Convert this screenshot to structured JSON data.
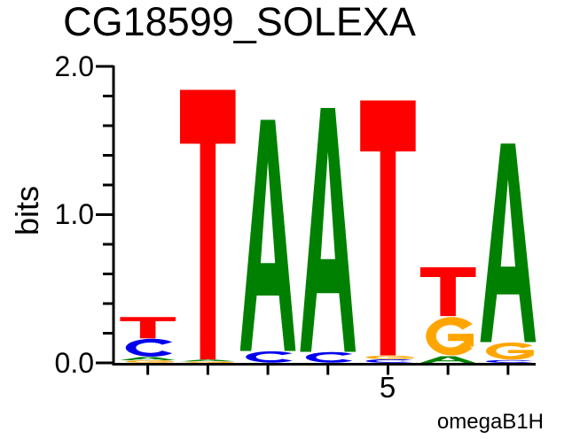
{
  "header": {
    "title": "CG18599_SOLEXA"
  },
  "y_axis": {
    "label": "bits",
    "tick_labels": [
      "2.0",
      "1.0",
      "0.0"
    ]
  },
  "x_axis": {
    "tick_label": "5"
  },
  "footer": {
    "label": "omegaB1H"
  },
  "chart_data": {
    "type": "sequence_logo",
    "title": "CG18599_SOLEXA",
    "ylabel": "bits",
    "ylim": [
      0.0,
      2.0
    ],
    "ytick_major": [
      0.0,
      1.0,
      2.0
    ],
    "ytick_minor_step": 0.2,
    "xtick_labeled_position": 5,
    "footer_label": "omegaB1H",
    "grid": false,
    "legend": "none",
    "alphabet_colors": {
      "A": "#008000",
      "C": "#0000EE",
      "G": "#FFA500",
      "T": "#FF0000"
    },
    "positions": [
      {
        "index": 1,
        "stack": [
          {
            "base": "T",
            "bits": 0.145
          },
          {
            "base": "C",
            "bits": 0.125
          },
          {
            "base": "A",
            "bits": 0.022
          },
          {
            "base": "G",
            "bits": 0.018
          }
        ]
      },
      {
        "index": 2,
        "stack": [
          {
            "base": "T",
            "bits": 1.82
          },
          {
            "base": "A",
            "bits": 0.012
          },
          {
            "base": "G",
            "bits": 0.01
          }
        ]
      },
      {
        "index": 3,
        "stack": [
          {
            "base": "A",
            "bits": 1.56
          },
          {
            "base": "C",
            "bits": 0.08
          }
        ]
      },
      {
        "index": 4,
        "stack": [
          {
            "base": "A",
            "bits": 1.645
          },
          {
            "base": "C",
            "bits": 0.075
          }
        ]
      },
      {
        "index": 5,
        "stack": [
          {
            "base": "T",
            "bits": 1.72
          },
          {
            "base": "G",
            "bits": 0.025
          },
          {
            "base": "C",
            "bits": 0.025
          }
        ]
      },
      {
        "index": 6,
        "stack": [
          {
            "base": "T",
            "bits": 0.33
          },
          {
            "base": "G",
            "bits": 0.27
          },
          {
            "base": "A",
            "bits": 0.045
          }
        ]
      },
      {
        "index": 7,
        "stack": [
          {
            "base": "A",
            "bits": 1.34
          },
          {
            "base": "G",
            "bits": 0.12
          },
          {
            "base": "C",
            "bits": 0.02
          }
        ]
      }
    ],
    "consensus": "TAATTA"
  }
}
